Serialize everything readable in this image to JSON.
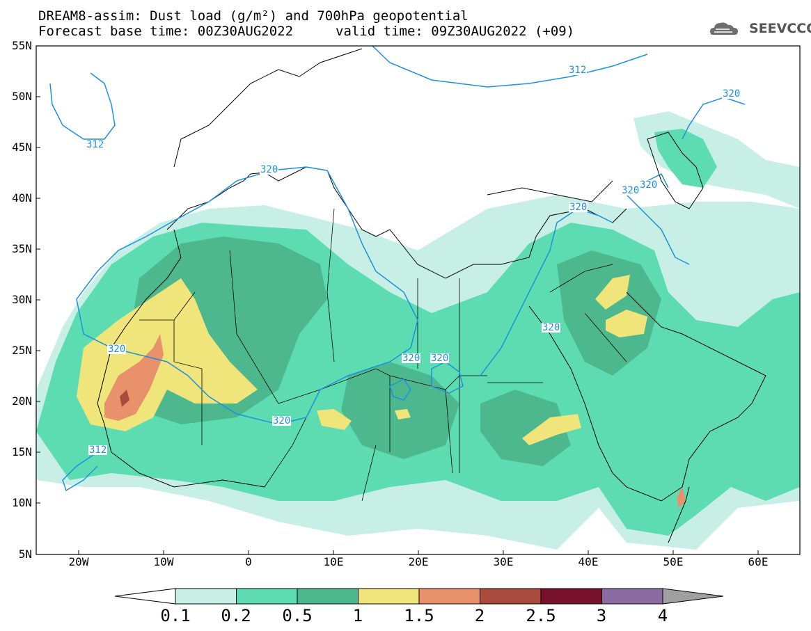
{
  "title": {
    "line1": "DREAM8-assim: Dust load (g/m²) and 700hPa geopotential",
    "line2": "Forecast base time: 00Z30AUG2022",
    "valid": "valid time: 09Z30AUG2022 (+09)"
  },
  "logo": {
    "text": "SEEVCCC",
    "icon": "cloud-icon"
  },
  "axes": {
    "lat_labels": [
      "55N",
      "50N",
      "45N",
      "40N",
      "35N",
      "30N",
      "25N",
      "20N",
      "15N",
      "10N",
      "5N"
    ],
    "lon_labels": [
      "20W",
      "10W",
      "0",
      "10E",
      "20E",
      "30E",
      "40E",
      "50E",
      "60E"
    ],
    "lon_range": [
      -25,
      65
    ],
    "lat_range": [
      5,
      55
    ]
  },
  "legend": {
    "levels": [
      "0.1",
      "0.2",
      "0.5",
      "1",
      "1.5",
      "2",
      "2.5",
      "3",
      "4"
    ],
    "colors": [
      "#c7efe6",
      "#5ddcb2",
      "#4db88d",
      "#efe57a",
      "#e8916a",
      "#a94a3d",
      "#78112c",
      "#8b6ca2"
    ],
    "under_color": "#ffffff",
    "over_color": "#a0a0a0"
  },
  "contours": {
    "labels": [
      "312",
      "312",
      "312",
      "320",
      "320",
      "320",
      "320",
      "320",
      "320",
      "320",
      "320",
      "320",
      "320"
    ],
    "color": "#1e90e0"
  }
}
